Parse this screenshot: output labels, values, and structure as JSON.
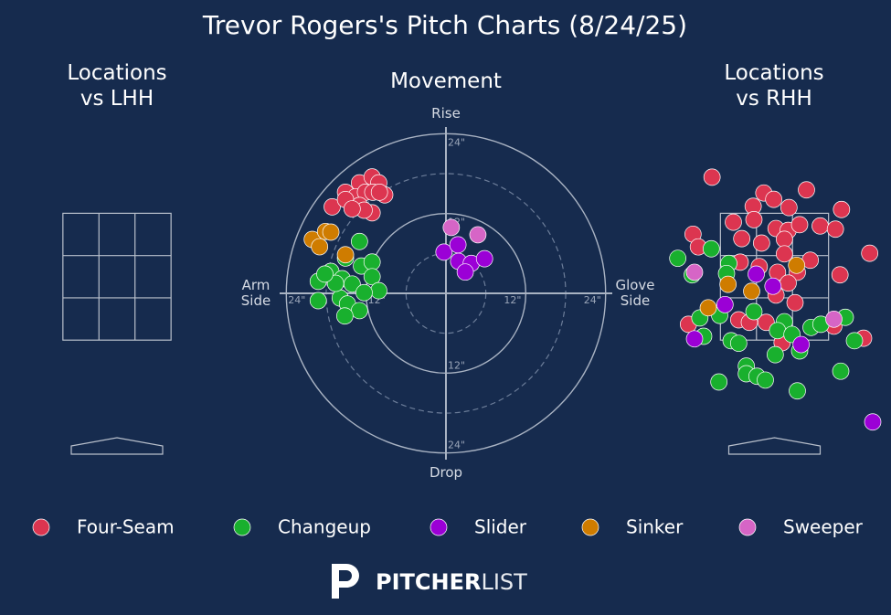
{
  "title": "Trevor Rogers's Pitch Charts (8/24/25)",
  "chart_data": [
    {
      "type": "scatter",
      "title": "Locations\nvs LHH",
      "xlim": [
        -1.53,
        1.53
      ],
      "ylim": [
        -0.5,
        4.5
      ],
      "strike_zone": {
        "x": [
          -0.71,
          0.71
        ],
        "z": [
          1.5,
          3.5
        ]
      },
      "series": []
    },
    {
      "type": "movement",
      "title": "Movement",
      "xlim": [
        -25,
        25
      ],
      "ylim": [
        -25,
        25
      ],
      "top_label": "Rise",
      "bottom_label": "Drop",
      "left_label": "Arm\nSide",
      "right_label": "Glove\nSide",
      "rticks": [
        {
          "value": 12,
          "label": "12\""
        },
        {
          "value": 24,
          "label": "24\""
        }
      ],
      "minor_rings": [
        6,
        18
      ],
      "series": [
        {
          "name": "Four-Seam",
          "color": "#dc3550",
          "x": [
            -13,
            -11.1,
            -10.1,
            -9.2,
            -15.1,
            -13.6,
            -12.1,
            -11,
            -17.1,
            -15.1,
            -13,
            -11.1,
            -12.3,
            -14.1,
            -10
          ],
          "y": [
            16.6,
            17.5,
            16.6,
            14.8,
            15.2,
            14.5,
            15.2,
            15.2,
            13,
            14.1,
            13.2,
            12.1,
            12.5,
            12.7,
            15.2
          ]
        },
        {
          "name": "Changeup",
          "color": "#19b02e",
          "x": [
            -13,
            -15.1,
            -12.7,
            -11.1,
            -19.2,
            -17.3,
            -15.6,
            -14.1,
            -11.1,
            -10.1,
            -12.3,
            -19.2,
            -15.9,
            -14.8,
            -13,
            -15.2,
            -16.6,
            -18.2
          ],
          "y": [
            7.8,
            5.3,
            4.1,
            4.7,
            1.8,
            3.3,
            2.2,
            1.4,
            2.5,
            0.4,
            0.1,
            -1.1,
            -0.7,
            -1.6,
            -2.6,
            -3.4,
            1.5,
            2.9
          ]
        },
        {
          "name": "Slider",
          "color": "#9b00d6",
          "x": [
            -0.3,
            1.8,
            1.9,
            3.8,
            5.8,
            2.9
          ],
          "y": [
            6.2,
            7.3,
            4.8,
            4.5,
            5.2,
            3.2
          ]
        },
        {
          "name": "Sinker",
          "color": "#cf7c00",
          "x": [
            -20.1,
            -19,
            -18.1,
            -17.3,
            -15.1
          ],
          "y": [
            8.1,
            7,
            9.3,
            9.2,
            5.8
          ]
        },
        {
          "name": "Sweeper",
          "color": "#d665c6",
          "x": [
            0.8,
            4.8
          ],
          "y": [
            9.9,
            8.8
          ]
        }
      ]
    },
    {
      "type": "scatter",
      "title": "Locations\nvs RHH",
      "xlim": [
        -1.53,
        1.53
      ],
      "ylim": [
        -0.5,
        4.5
      ],
      "strike_zone": {
        "x": [
          -0.71,
          0.71
        ],
        "z": [
          1.5,
          3.5
        ]
      },
      "series": [
        {
          "color": "#dc3550",
          "x": [
            -0.82,
            -0.14,
            -0.01,
            0.42,
            -0.28,
            0.19,
            0.88,
            -0.54,
            -1.07,
            0.02,
            0.18,
            0.33,
            0.6,
            0.8,
            -0.43,
            -0.17,
            0.13,
            -1,
            0.13,
            0.47,
            -0.45,
            -0.2,
            0.04,
            0.3,
            0.86,
            1.25,
            0.18,
            0.02,
            0.27,
            -1.13,
            -0.47,
            -0.11,
            -0.33,
            0.78,
            1.17,
            0.1,
            -0.27
          ],
          "y": [
            4.07,
            3.82,
            3.72,
            3.87,
            3.61,
            3.59,
            3.56,
            3.36,
            3.17,
            3.26,
            3.23,
            3.32,
            3.3,
            3.25,
            3.1,
            3.03,
            3.09,
            2.97,
            2.86,
            2.76,
            2.73,
            2.66,
            2.57,
            2.57,
            2.53,
            2.87,
            2.4,
            2.21,
            2.09,
            1.75,
            1.82,
            1.78,
            1.78,
            1.72,
            1.53,
            1.46,
            3.4
          ]
        },
        {
          "color": "#19b02e",
          "x": [
            -0.83,
            -1.27,
            -1.08,
            -0.6,
            -0.63,
            -0.27,
            -0.98,
            -0.72,
            -0.93,
            -0.57,
            -0.47,
            0.13,
            0.04,
            0.23,
            0.48,
            0.61,
            0.93,
            1.05,
            0.33,
            0.01,
            -0.37,
            -0.37,
            -0.23,
            -0.12,
            -0.73,
            0.87,
            0.3
          ],
          "y": [
            2.94,
            2.79,
            2.53,
            2.71,
            2.55,
            1.95,
            1.85,
            1.89,
            1.56,
            1.49,
            1.45,
            1.79,
            1.65,
            1.59,
            1.7,
            1.75,
            1.86,
            1.49,
            1.33,
            1.27,
            1.09,
            0.97,
            0.93,
            0.87,
            0.84,
            1.01,
            0.7
          ]
        },
        {
          "color": "#9b00d6",
          "x": [
            -0.24,
            -0.02,
            -0.65,
            -1.05,
            0.35,
            1.29
          ],
          "y": [
            2.54,
            2.35,
            2.06,
            1.52,
            1.43,
            0.21
          ]
        },
        {
          "color": "#cf7c00",
          "x": [
            0.29,
            -0.61,
            -0.3,
            -0.87
          ],
          "y": [
            2.68,
            2.38,
            2.27,
            2.01
          ]
        },
        {
          "color": "#d665c6",
          "x": [
            -1.05,
            0.78
          ],
          "y": [
            2.57,
            1.83
          ]
        }
      ]
    }
  ],
  "logo": {
    "bold": "PITCHER",
    "light": "LIST"
  }
}
